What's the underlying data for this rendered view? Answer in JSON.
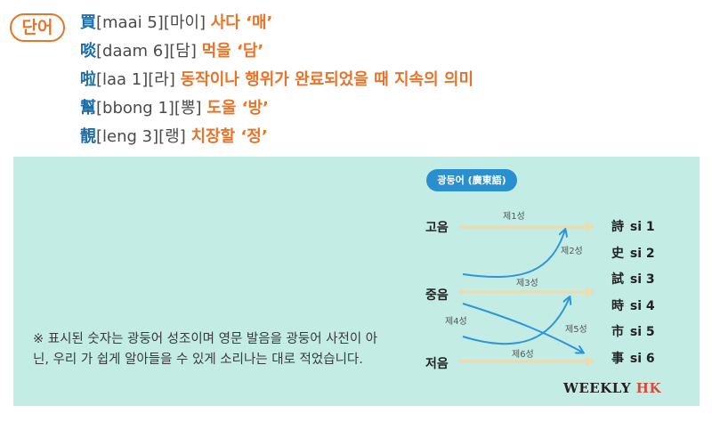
{
  "badge": "단어",
  "vocab": [
    {
      "hanja": "買",
      "rom": "[maai 5][마이]",
      "meaning": "사다 ‘매’"
    },
    {
      "hanja": "啖",
      "rom": "[daam 6][담]",
      "meaning": "먹을 ‘담’"
    },
    {
      "hanja": "啦",
      "rom": "[laa 1][라]",
      "meaning": "동작이나 행위가 완료되었을 때 지속의 의미"
    },
    {
      "hanja": "幫",
      "rom": "[bbong 1][뽕]",
      "meaning": "도울 ‘방’"
    },
    {
      "hanja": "靚",
      "rom": "[leng 3][랭]",
      "meaning": "치장할 ‘정’"
    }
  ],
  "note": "※ 표시된 숫자는 광둥어 성조이며 영문 발음을 광둥어 사전이 아닌, 우리 가 쉽게 알아들을 수 있게 소리나는 대로 적었습니다.",
  "diagram": {
    "pill": "광둥어 (廣東語)",
    "levels": {
      "high": "고음",
      "mid": "중음",
      "low": "저음"
    },
    "tones": [
      {
        "char": "詩",
        "rom": "si 1"
      },
      {
        "char": "史",
        "rom": "si 2"
      },
      {
        "char": "試",
        "rom": "si 3"
      },
      {
        "char": "時",
        "rom": "si 4"
      },
      {
        "char": "市",
        "rom": "si 5"
      },
      {
        "char": "事",
        "rom": "si 6"
      }
    ],
    "tone_labels": [
      "제1성",
      "제2성",
      "제3성",
      "제4성",
      "제5성",
      "제6성"
    ],
    "colors": {
      "straight": "#f3d9a8",
      "curve": "#2f95d6",
      "pill": "#2a8fcf"
    }
  },
  "brand": {
    "main": "WEEKLY ",
    "accent": "HK"
  }
}
